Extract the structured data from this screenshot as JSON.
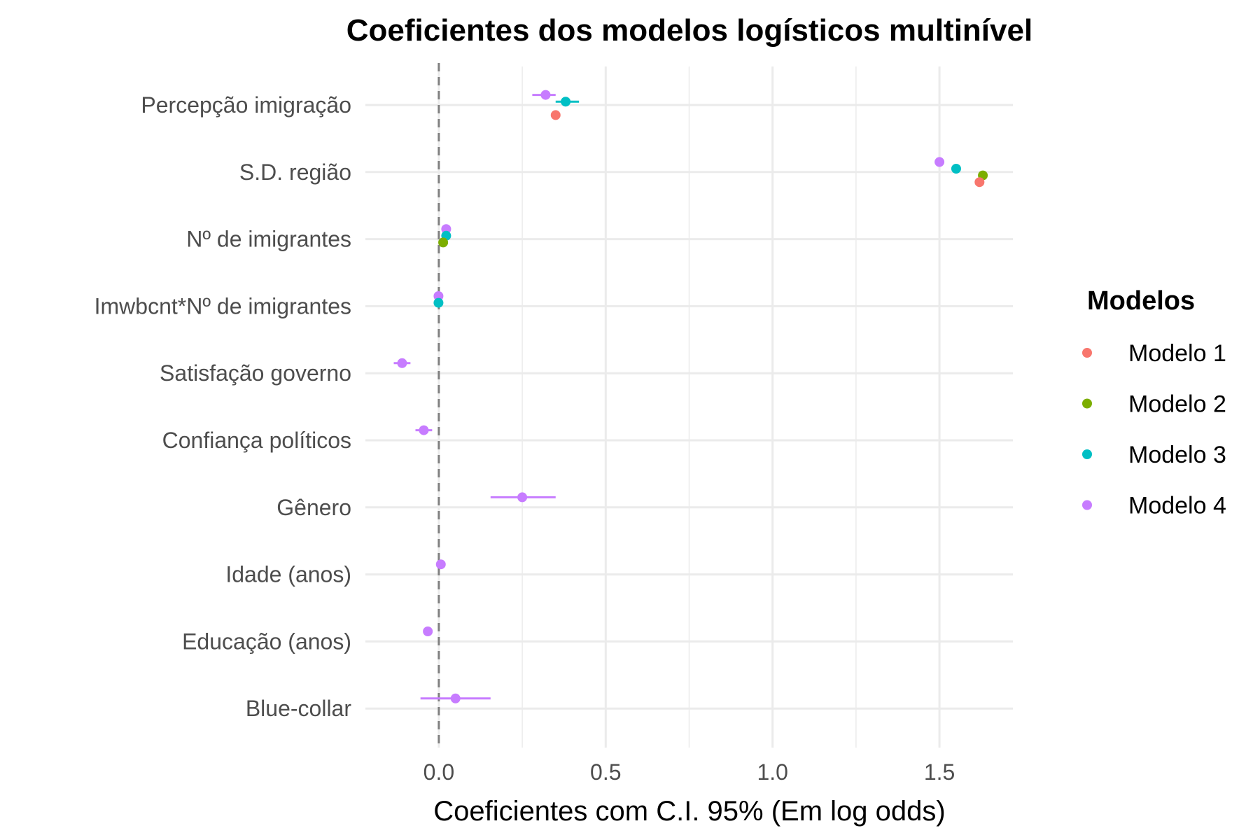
{
  "chart_data": {
    "type": "scatter",
    "title": "Coeficientes dos modelos logísticos multinível",
    "xlabel": "Coeficientes com C.I. 95% (Em log odds)",
    "ylabel": "",
    "xlim": [
      -0.22,
      1.72
    ],
    "x_ticks": [
      0.0,
      0.5,
      1.0,
      1.5
    ],
    "x_tick_labels": [
      "0.0",
      "0.5",
      "1.0",
      "1.5"
    ],
    "grid": true,
    "reference_line": 0,
    "legend_position": "right",
    "legend_title": "Modelos",
    "categories": [
      "Percepção imigração",
      "S.D. região",
      "Nº de imigrantes",
      "Imwbcnt*Nº de imigrantes",
      "Satisfação governo",
      "Confiança políticos",
      "Gênero",
      "Idade (anos)",
      "Educação (anos)",
      "Blue-collar"
    ],
    "series": [
      {
        "name": "Modelo 1",
        "color": "#F8766D",
        "points": [
          {
            "category": "Percepção imigração",
            "estimate": 0.35,
            "low": 0.34,
            "high": 0.36
          },
          {
            "category": "S.D. região",
            "estimate": 1.62,
            "low": 1.61,
            "high": 1.63
          }
        ]
      },
      {
        "name": "Modelo 2",
        "color": "#7CAE00",
        "points": [
          {
            "category": "S.D. região",
            "estimate": 1.63,
            "low": 1.62,
            "high": 1.64
          },
          {
            "category": "Nº de imigrantes",
            "estimate": 0.013,
            "low": 0.008,
            "high": 0.018
          }
        ]
      },
      {
        "name": "Modelo 3",
        "color": "#00BFC4",
        "points": [
          {
            "category": "Percepção imigração",
            "estimate": 0.38,
            "low": 0.35,
            "high": 0.42
          },
          {
            "category": "S.D. região",
            "estimate": 1.55,
            "low": 1.54,
            "high": 1.56
          },
          {
            "category": "Nº de imigrantes",
            "estimate": 0.022,
            "low": 0.017,
            "high": 0.027
          },
          {
            "category": "Imwbcnt*Nº de imigrantes",
            "estimate": -0.001,
            "low": -0.004,
            "high": 0.002
          }
        ]
      },
      {
        "name": "Modelo 4",
        "color": "#C77CFF",
        "points": [
          {
            "category": "Percepção imigração",
            "estimate": 0.32,
            "low": 0.28,
            "high": 0.35
          },
          {
            "category": "S.D. região",
            "estimate": 1.5,
            "low": 1.49,
            "high": 1.51
          },
          {
            "category": "Nº de imigrantes",
            "estimate": 0.022,
            "low": 0.017,
            "high": 0.027
          },
          {
            "category": "Imwbcnt*Nº de imigrantes",
            "estimate": -0.001,
            "low": -0.004,
            "high": 0.002
          },
          {
            "category": "Satisfação governo",
            "estimate": -0.11,
            "low": -0.135,
            "high": -0.085
          },
          {
            "category": "Confiança políticos",
            "estimate": -0.045,
            "low": -0.07,
            "high": -0.02
          },
          {
            "category": "Gênero",
            "estimate": 0.25,
            "low": 0.155,
            "high": 0.35
          },
          {
            "category": "Idade (anos)",
            "estimate": 0.006,
            "low": 0.003,
            "high": 0.009
          },
          {
            "category": "Educação (anos)",
            "estimate": -0.033,
            "low": -0.038,
            "high": -0.028
          },
          {
            "category": "Blue-collar",
            "estimate": 0.05,
            "low": -0.055,
            "high": 0.155
          }
        ]
      }
    ]
  }
}
